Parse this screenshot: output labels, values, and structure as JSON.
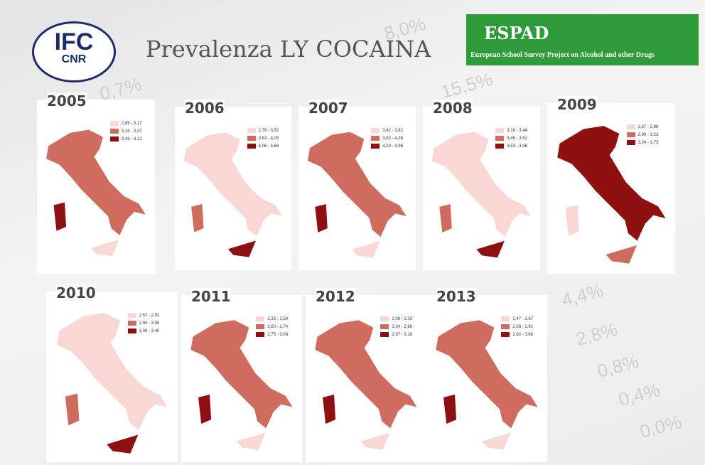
{
  "header": {
    "title": "Prevalenza LY COCAINA",
    "logo_left_top": "IFC",
    "logo_left_bottom": "CNR",
    "logo_right_title": "ESPAD",
    "logo_right_subtitle": "European School Survey Project on Alcohol and other Drugs"
  },
  "background_numbers": [
    "8,0%",
    "15,5%",
    "0,7%",
    "4,4%",
    "2,8%",
    "0,8%",
    "0,4%",
    "0,0%"
  ],
  "maps": [
    {
      "year": "2005",
      "legend": [
        "2,85 - 3,17",
        "3,18 - 3,47",
        "3,48 - 4,12"
      ]
    },
    {
      "year": "2006",
      "legend": [
        "2,78 - 3,52",
        "3,53 - 4,05",
        "4,06 - 4,66"
      ]
    },
    {
      "year": "2007",
      "legend": [
        "3,42 - 3,82",
        "3,83 - 4,28",
        "4,29 - 4,96"
      ]
    },
    {
      "year": "2008",
      "legend": [
        "3,18 - 3,44",
        "3,45 - 3,52",
        "3,53 - 3,96"
      ]
    },
    {
      "year": "2009",
      "legend": [
        "2,37 - 2,89",
        "2,90 - 3,23",
        "3,24 - 3,73"
      ]
    },
    {
      "year": "2010",
      "legend": [
        "2,57 - 2,92",
        "2,93 - 3,08",
        "3,09 - 3,40"
      ]
    },
    {
      "year": "2011",
      "legend": [
        "2,32 - 2,59",
        "2,60 - 2,74",
        "2,75 - 3,08"
      ]
    },
    {
      "year": "2012",
      "legend": [
        "2,08 - 2,33",
        "2,34 - 2,86",
        "2,87 - 3,18"
      ]
    },
    {
      "year": "2013",
      "legend": [
        "2,47 - 2,67",
        "2,68 - 2,91",
        "2,92 - 3,66"
      ]
    }
  ]
}
